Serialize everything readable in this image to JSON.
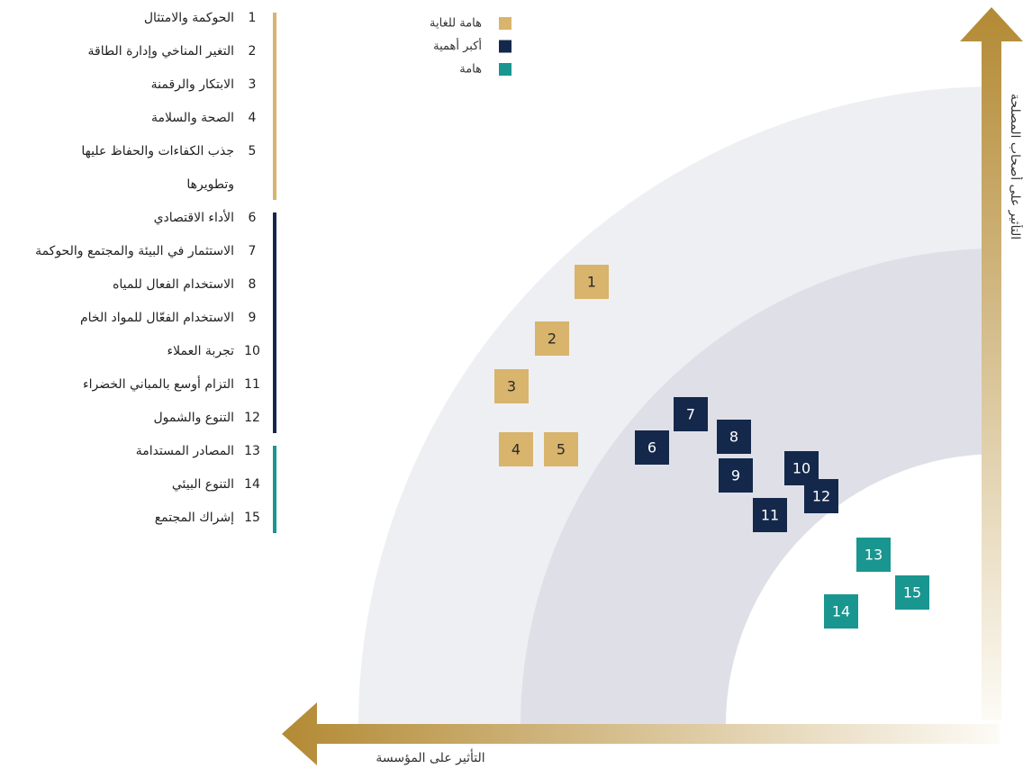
{
  "legend": [
    {
      "label": "هامة للغاية",
      "color": "#d8b46c"
    },
    {
      "label": "أكبر أهمية",
      "color": "#14284b"
    },
    {
      "label": "هامة",
      "color": "#1a9690"
    }
  ],
  "topics": [
    {
      "number": "1",
      "label": "الحوكمة والامتثال",
      "group": 0
    },
    {
      "number": "2",
      "label": "التغير المناخي وإدارة الطاقة",
      "group": 0
    },
    {
      "number": "3",
      "label": "الابتكار والرقمنة",
      "group": 0
    },
    {
      "number": "4",
      "label": "الصحة والسلامة",
      "group": 0
    },
    {
      "number": "5",
      "label": "جذب الكفاءات والحفاظ عليها وتطويرها",
      "group": 0
    },
    {
      "number": "6",
      "label": "الأداء الاقتصادي",
      "group": 1
    },
    {
      "number": "7",
      "label": "الاستثمار في البيئة والمجتمع والحوكمة",
      "group": 1
    },
    {
      "number": "8",
      "label": "الاستخدام الفعال للمياه",
      "group": 1
    },
    {
      "number": "9",
      "label": "الاستخدام الفعّال للمواد الخام",
      "group": 1
    },
    {
      "number": "10",
      "label": "تجربة العملاء",
      "group": 1
    },
    {
      "number": "11",
      "label": "التزام أوسع بالمباني الخضراء",
      "group": 1
    },
    {
      "number": "12",
      "label": "التنوع والشمول",
      "group": 1
    },
    {
      "number": "13",
      "label": "المصادر المستدامة",
      "group": 2
    },
    {
      "number": "14",
      "label": "التنوع البيئي",
      "group": 2
    },
    {
      "number": "15",
      "label": "إشراك المجتمع",
      "group": 2
    }
  ],
  "axes": {
    "y_label": "التأثير على أصحاب المصلحة",
    "x_label": "التأثير على المؤسسة"
  }
}
